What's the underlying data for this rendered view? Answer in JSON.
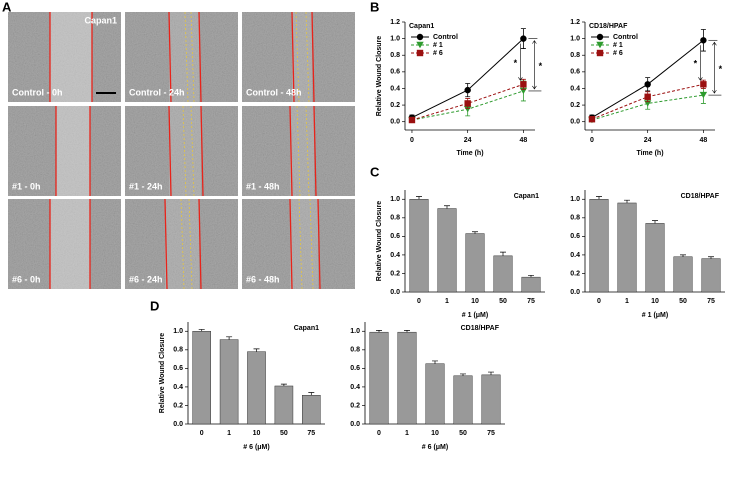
{
  "panel_labels": [
    "A",
    "B",
    "C",
    "D"
  ],
  "micrographs": {
    "cell_line": "Capan1",
    "labels": [
      [
        "Control - 0h",
        "Control - 24h",
        "Control - 48h"
      ],
      [
        "#1 - 0h",
        "#1 - 24h",
        "#1 - 48h"
      ],
      [
        "#6 - 0h",
        "#6 - 24h",
        "#6 - 48h"
      ]
    ]
  },
  "chart_data": [
    {
      "type": "line",
      "title": "Capan1",
      "xlabel": "Time (h)",
      "ylabel": "Relative Wound Closure",
      "x": [
        0,
        24,
        48
      ],
      "xlim": [
        -3,
        53
      ],
      "xticks": [
        0,
        24,
        48
      ],
      "ylim": [
        -0.1,
        1.2
      ],
      "yticks": [
        {
          "value": 0,
          "label": "0.0"
        },
        0.2,
        0.4,
        0.6,
        0.8,
        {
          "value": 1,
          "label": "1.0"
        },
        1.2
      ],
      "series": [
        {
          "name": "Control",
          "color": "#000000",
          "linestyle": "solid",
          "marker": "circle",
          "values": [
            0.05,
            0.38,
            1.0
          ],
          "errors": [
            0.03,
            0.08,
            0.12
          ]
        },
        {
          "name": "# 1",
          "color": "#2e9b2e",
          "linestyle": "dashed",
          "marker": "triangle",
          "values": [
            0.02,
            0.15,
            0.37
          ],
          "errors": [
            0.02,
            0.08,
            0.12
          ]
        },
        {
          "name": "# 6",
          "color": "#9b1010",
          "linestyle": "dashed",
          "marker": "square",
          "values": [
            0.02,
            0.22,
            0.45
          ],
          "errors": [
            0.02,
            0.06,
            0.06
          ]
        }
      ],
      "significance": [
        "*",
        "*"
      ]
    },
    {
      "type": "line",
      "title": "CD18/HPAF",
      "xlabel": "Time (h)",
      "x": [
        0,
        24,
        48
      ],
      "xlim": [
        -3,
        53
      ],
      "xticks": [
        0,
        24,
        48
      ],
      "ylim": [
        -0.1,
        1.2
      ],
      "yticks": [
        {
          "value": 0,
          "label": "0.0"
        },
        0.2,
        0.4,
        0.6,
        0.8,
        {
          "value": 1,
          "label": "1.0"
        },
        1.2
      ],
      "series": [
        {
          "name": "Control",
          "color": "#000000",
          "linestyle": "solid",
          "marker": "circle",
          "values": [
            0.05,
            0.45,
            0.98
          ],
          "errors": [
            0.03,
            0.08,
            0.13
          ]
        },
        {
          "name": "# 1",
          "color": "#2e9b2e",
          "linestyle": "dashed",
          "marker": "triangle",
          "values": [
            0.02,
            0.22,
            0.32
          ],
          "errors": [
            0.02,
            0.07,
            0.1
          ]
        },
        {
          "name": "# 6",
          "color": "#9b1010",
          "linestyle": "dashed",
          "marker": "square",
          "values": [
            0.03,
            0.3,
            0.45
          ],
          "errors": [
            0.02,
            0.06,
            0.05
          ]
        }
      ],
      "significance": [
        "*",
        "*"
      ]
    },
    {
      "type": "bar",
      "title": "Capan1",
      "xlabel": "# 1 (μM)",
      "ylabel": "Relative Wound Closure",
      "categories": [
        "0",
        "1",
        "10",
        "50",
        "75"
      ],
      "color": "#999999",
      "values": [
        1.0,
        0.9,
        0.63,
        0.39,
        0.16
      ],
      "errors": [
        0.03,
        0.03,
        0.02,
        0.04,
        0.02
      ],
      "ylim": [
        0,
        1.1
      ],
      "yticks": [
        {
          "value": 0,
          "label": "0.0"
        },
        0.2,
        0.4,
        0.6,
        0.8,
        {
          "value": 1,
          "label": "1.0"
        }
      ]
    },
    {
      "type": "bar",
      "title": "CD18/HPAF",
      "xlabel": "# 1 (μM)",
      "categories": [
        "0",
        "1",
        "10",
        "50",
        "75"
      ],
      "color": "#999999",
      "values": [
        1.0,
        0.96,
        0.74,
        0.38,
        0.36
      ],
      "errors": [
        0.03,
        0.03,
        0.03,
        0.02,
        0.02
      ],
      "ylim": [
        0,
        1.1
      ],
      "yticks": [
        {
          "value": 0,
          "label": "0.0"
        },
        0.2,
        0.4,
        0.6,
        0.8,
        {
          "value": 1,
          "label": "1.0"
        }
      ]
    },
    {
      "type": "bar",
      "title": "Capan1",
      "xlabel": "# 6 (μM)",
      "ylabel": "Relative Wound Closure",
      "categories": [
        "0",
        "1",
        "10",
        "50",
        "75"
      ],
      "color": "#999999",
      "values": [
        1.0,
        0.91,
        0.78,
        0.41,
        0.31
      ],
      "errors": [
        0.02,
        0.03,
        0.03,
        0.02,
        0.03
      ],
      "ylim": [
        0,
        1.1
      ],
      "yticks": [
        {
          "value": 0,
          "label": "0.0"
        },
        0.2,
        0.4,
        0.6,
        0.8,
        {
          "value": 1,
          "label": "1.0"
        }
      ]
    },
    {
      "type": "bar",
      "title": "CD18/HPAF",
      "xlabel": "# 6 (μM)",
      "categories": [
        "0",
        "1",
        "10",
        "50",
        "75"
      ],
      "color": "#999999",
      "values": [
        0.99,
        0.99,
        0.65,
        0.52,
        0.53
      ],
      "errors": [
        0.02,
        0.02,
        0.03,
        0.02,
        0.03
      ],
      "ylim": [
        0,
        1.1
      ],
      "yticks": [
        {
          "value": 0,
          "label": "0.0"
        },
        0.2,
        0.4,
        0.6,
        0.8,
        {
          "value": 1,
          "label": "1.0"
        }
      ]
    }
  ]
}
